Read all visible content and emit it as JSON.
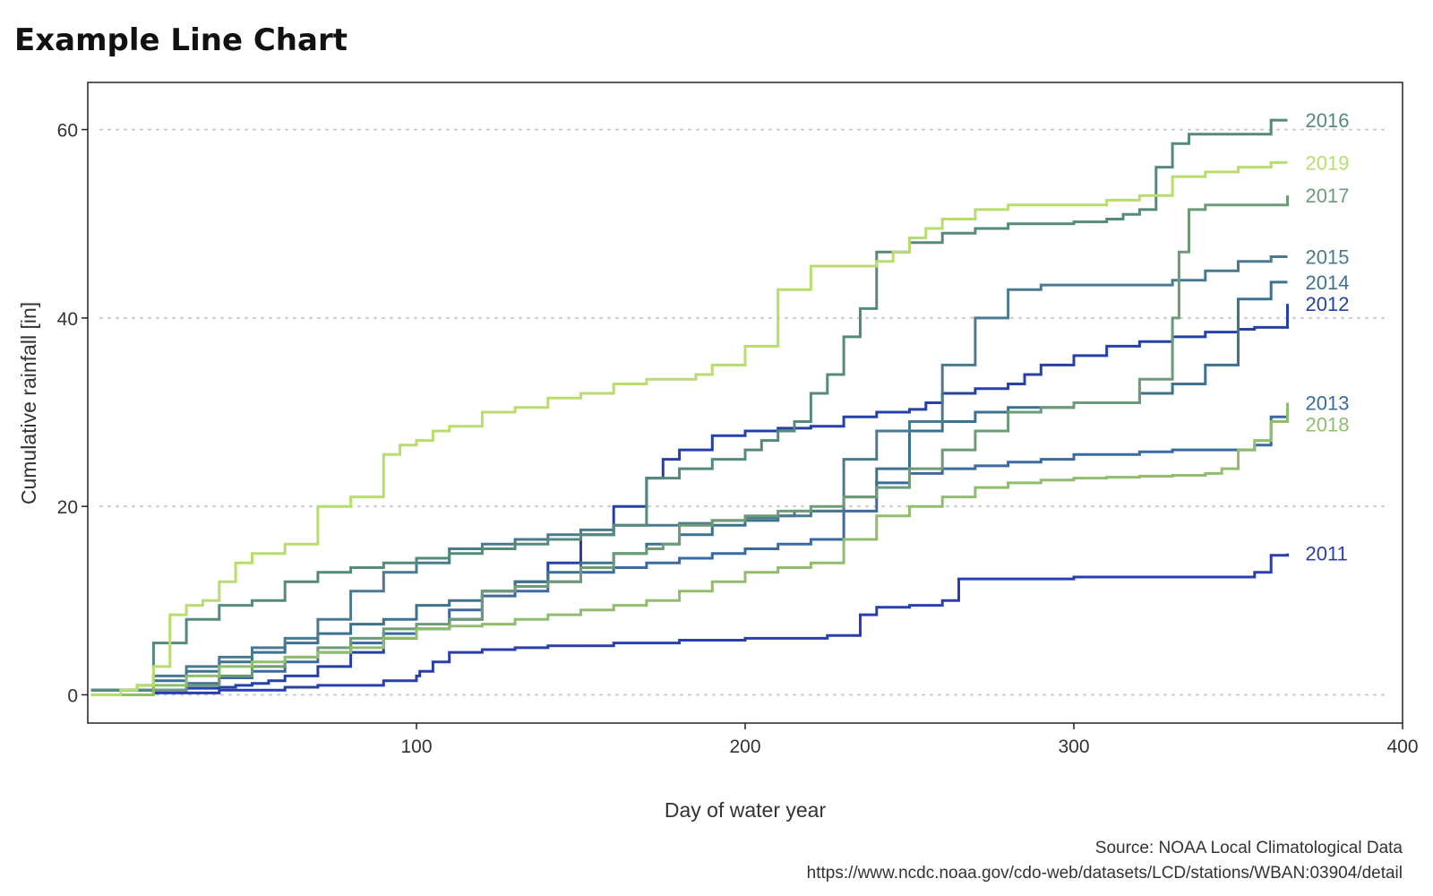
{
  "chart_data": {
    "type": "line",
    "title": "Example Line Chart",
    "xlabel": "Day of water year",
    "ylabel": "Cumulative rainfall [in]",
    "xlim": [
      0,
      400
    ],
    "ylim": [
      -3,
      65
    ],
    "xticks": [
      100,
      200,
      300,
      400
    ],
    "yticks": [
      0,
      20,
      40,
      60
    ],
    "grid": "horizontal-dotted",
    "caption": [
      "Source: NOAA Local Climatological Data",
      "https://www.ncdc.noaa.gov/cdo-web/datasets/LCD/stations/WBAN:03904/detail"
    ],
    "series": [
      {
        "name": "2011",
        "color": "#2a3fae",
        "x": [
          1,
          20,
          40,
          60,
          70,
          80,
          85,
          90,
          100,
          101,
          105,
          110,
          120,
          130,
          140,
          160,
          180,
          200,
          210,
          220,
          222,
          225,
          235,
          240,
          250,
          260,
          265,
          275,
          280,
          300,
          320,
          340,
          350,
          355,
          360,
          365
        ],
        "values": [
          0,
          0.2,
          0.5,
          0.8,
          1,
          1,
          1,
          1.5,
          2,
          2.5,
          3.5,
          4.5,
          4.8,
          5,
          5.2,
          5.5,
          5.8,
          6,
          6,
          6,
          6,
          6.3,
          8.5,
          9.3,
          9.5,
          10,
          12.3,
          12.3,
          12.3,
          12.5,
          12.5,
          12.5,
          12.5,
          13,
          14.8,
          15
        ]
      },
      {
        "name": "2012",
        "color": "#2540a8",
        "x": [
          1,
          30,
          40,
          45,
          50,
          55,
          60,
          70,
          80,
          90,
          100,
          110,
          120,
          130,
          140,
          150,
          160,
          170,
          175,
          180,
          190,
          200,
          210,
          220,
          230,
          240,
          250,
          255,
          260,
          270,
          280,
          285,
          290,
          300,
          310,
          320,
          330,
          340,
          350,
          355,
          360,
          365
        ],
        "values": [
          0.5,
          0.7,
          0.8,
          1,
          1.2,
          1.5,
          2,
          3,
          4.5,
          6,
          7,
          8,
          11,
          12,
          14,
          17,
          20,
          23,
          25,
          26,
          27.5,
          28,
          28.3,
          28.5,
          29.5,
          30,
          30.3,
          31,
          32,
          32.5,
          33,
          34,
          35,
          36,
          37,
          37.5,
          38,
          38.5,
          38.8,
          39,
          39,
          41.5
        ]
      },
      {
        "name": "2013",
        "color": "#3a6aa0",
        "x": [
          1,
          20,
          30,
          40,
          50,
          60,
          70,
          80,
          90,
          100,
          110,
          120,
          130,
          140,
          150,
          160,
          170,
          180,
          190,
          200,
          210,
          220,
          230,
          240,
          250,
          260,
          270,
          280,
          290,
          300,
          310,
          320,
          330,
          340,
          350,
          355,
          360,
          365
        ],
        "values": [
          0,
          0.5,
          1.2,
          1.8,
          2.5,
          3.5,
          4.5,
          5.5,
          6.5,
          7,
          9,
          10.5,
          11,
          12,
          13,
          13.5,
          14,
          14.5,
          15,
          15.5,
          16,
          16.5,
          19.5,
          22.5,
          23.5,
          24,
          24.3,
          24.7,
          25,
          25.5,
          25.5,
          25.8,
          26,
          26,
          26,
          26.5,
          29.5,
          31
        ]
      },
      {
        "name": "2014",
        "color": "#3d728f",
        "x": [
          1,
          20,
          30,
          40,
          50,
          60,
          70,
          80,
          90,
          100,
          110,
          120,
          130,
          140,
          150,
          160,
          170,
          180,
          190,
          200,
          210,
          215,
          220,
          230,
          240,
          250,
          260,
          270,
          280,
          290,
          300,
          320,
          330,
          340,
          350,
          360,
          365
        ],
        "values": [
          0.5,
          1.5,
          2.5,
          3.5,
          4.5,
          5.5,
          6.5,
          7.5,
          8,
          9.5,
          10,
          11,
          12,
          13,
          14,
          15,
          16,
          17,
          18,
          18.5,
          19,
          19.5,
          19.5,
          21,
          24,
          28,
          29,
          30,
          30.5,
          30.5,
          31,
          32,
          33,
          35,
          42,
          43.8,
          43.8
        ]
      },
      {
        "name": "2015",
        "color": "#4a7a90",
        "x": [
          1,
          15,
          20,
          30,
          40,
          50,
          60,
          70,
          80,
          90,
          100,
          110,
          120,
          130,
          140,
          150,
          160,
          170,
          180,
          190,
          200,
          210,
          220,
          230,
          240,
          250,
          260,
          270,
          280,
          290,
          300,
          310,
          320,
          330,
          340,
          350,
          360,
          365
        ],
        "values": [
          0.5,
          1,
          2,
          3,
          4,
          5,
          6,
          8,
          11,
          13,
          14,
          15.5,
          16,
          16.5,
          17,
          17.5,
          18,
          18,
          18.2,
          18.5,
          18.8,
          19,
          19.5,
          25,
          28,
          29,
          35,
          40,
          43,
          43.5,
          43.5,
          43.5,
          43.5,
          44,
          45,
          46,
          46.5,
          46.5
        ]
      },
      {
        "name": "2016",
        "color": "#55897a",
        "x": [
          1,
          20,
          30,
          40,
          50,
          60,
          70,
          80,
          90,
          100,
          110,
          120,
          130,
          140,
          150,
          160,
          170,
          180,
          190,
          200,
          205,
          210,
          215,
          220,
          225,
          230,
          235,
          240,
          250,
          260,
          270,
          280,
          290,
          300,
          310,
          315,
          320,
          325,
          330,
          335,
          340,
          350,
          360,
          365
        ],
        "values": [
          0.5,
          5.5,
          8,
          9.5,
          10,
          12,
          13,
          13.5,
          14,
          14.5,
          15,
          15.5,
          16,
          16.5,
          17,
          18,
          23,
          24,
          25,
          26,
          27,
          28,
          29,
          32,
          34,
          38,
          41,
          47,
          48,
          49,
          49.5,
          50,
          50,
          50.2,
          50.5,
          51,
          51.5,
          56,
          58.5,
          59.5,
          59.5,
          59.5,
          61,
          61
        ]
      },
      {
        "name": "2017",
        "color": "#6d9b78",
        "x": [
          1,
          20,
          30,
          40,
          50,
          60,
          70,
          80,
          90,
          100,
          110,
          120,
          130,
          140,
          150,
          160,
          170,
          175,
          180,
          190,
          200,
          210,
          220,
          230,
          240,
          250,
          260,
          270,
          280,
          290,
          300,
          310,
          320,
          325,
          330,
          332,
          335,
          340,
          350,
          360,
          365
        ],
        "values": [
          0,
          0.5,
          1,
          2,
          3,
          4,
          5,
          6,
          7,
          7.5,
          8,
          11,
          11.5,
          12,
          13.5,
          15,
          15.5,
          16,
          18,
          18.5,
          19,
          19.5,
          20,
          21,
          22,
          24,
          26,
          28,
          30,
          30.5,
          31,
          31,
          33.5,
          33.5,
          40,
          47,
          51.5,
          52,
          52,
          52,
          53
        ]
      },
      {
        "name": "2018",
        "color": "#8fbd6d",
        "x": [
          1,
          20,
          30,
          40,
          50,
          60,
          70,
          80,
          90,
          100,
          110,
          120,
          130,
          140,
          150,
          160,
          170,
          180,
          190,
          200,
          210,
          220,
          230,
          240,
          250,
          260,
          270,
          280,
          290,
          300,
          310,
          320,
          330,
          340,
          345,
          350,
          355,
          360,
          365
        ],
        "values": [
          0,
          1,
          2,
          3,
          3.5,
          4,
          4.5,
          5,
          6,
          7,
          7.3,
          7.5,
          8,
          8.5,
          9,
          9.5,
          10,
          11,
          12,
          13,
          13.5,
          14,
          16.5,
          19,
          20,
          21,
          22,
          22.5,
          22.8,
          23,
          23.1,
          23.2,
          23.3,
          23.5,
          24,
          26,
          27,
          29,
          31
        ]
      },
      {
        "name": "2019",
        "color": "#b8dc6e",
        "x": [
          1,
          10,
          15,
          20,
          25,
          30,
          35,
          40,
          45,
          50,
          60,
          70,
          80,
          90,
          95,
          100,
          105,
          110,
          120,
          130,
          140,
          150,
          160,
          170,
          180,
          185,
          190,
          200,
          210,
          220,
          230,
          240,
          245,
          250,
          255,
          260,
          270,
          280,
          290,
          300,
          310,
          320,
          330,
          340,
          350,
          360,
          365
        ],
        "values": [
          0,
          0.5,
          1,
          3,
          8.5,
          9.5,
          10,
          12,
          14,
          15,
          16,
          20,
          21,
          25.5,
          26.5,
          27,
          28,
          28.5,
          30,
          30.5,
          31.5,
          32,
          33,
          33.5,
          33.5,
          34,
          35,
          37,
          43,
          45.5,
          45.5,
          46,
          47,
          48.5,
          49.5,
          50.5,
          51.5,
          52,
          52,
          52,
          52.5,
          53,
          55,
          55.5,
          56,
          56.5,
          56.5
        ]
      }
    ]
  }
}
